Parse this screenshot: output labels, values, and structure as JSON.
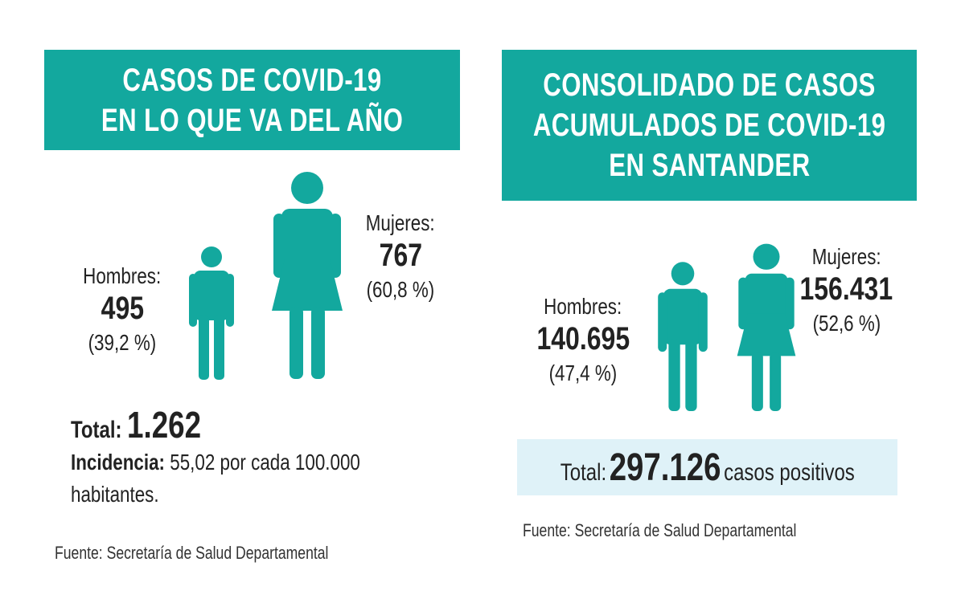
{
  "colors": {
    "teal": "#13a89e",
    "total_box": "#dff2f8"
  },
  "left": {
    "title_lines": [
      "CASOS DE COVID-19",
      "EN LO QUE VA DEL AÑO"
    ],
    "men": {
      "label": "Hombres:",
      "value": "495",
      "percent": "(39,2 %)"
    },
    "women": {
      "label": "Mujeres:",
      "value": "767",
      "percent": "(60,8 %)"
    },
    "total_label": "Total:",
    "total_value": "1.262",
    "incidence_label": "Incidencia:",
    "incidence_text": "55,02 por cada 100.000",
    "incidence_text2": "habitantes.",
    "source": "Fuente: Secretaría de Salud Departamental"
  },
  "right": {
    "title_lines": [
      "CONSOLIDADO DE CASOS",
      "ACUMULADOS DE COVID-19",
      "EN SANTANDER"
    ],
    "men": {
      "label": "Hombres:",
      "value": "140.695",
      "percent": "(47,4 %)"
    },
    "women": {
      "label": "Mujeres:",
      "value": "156.431",
      "percent": "(52,6 %)"
    },
    "total_label": "Total:",
    "total_value": "297.126",
    "total_suffix": "casos positivos",
    "source": "Fuente: Secretaría de Salud Departamental"
  }
}
